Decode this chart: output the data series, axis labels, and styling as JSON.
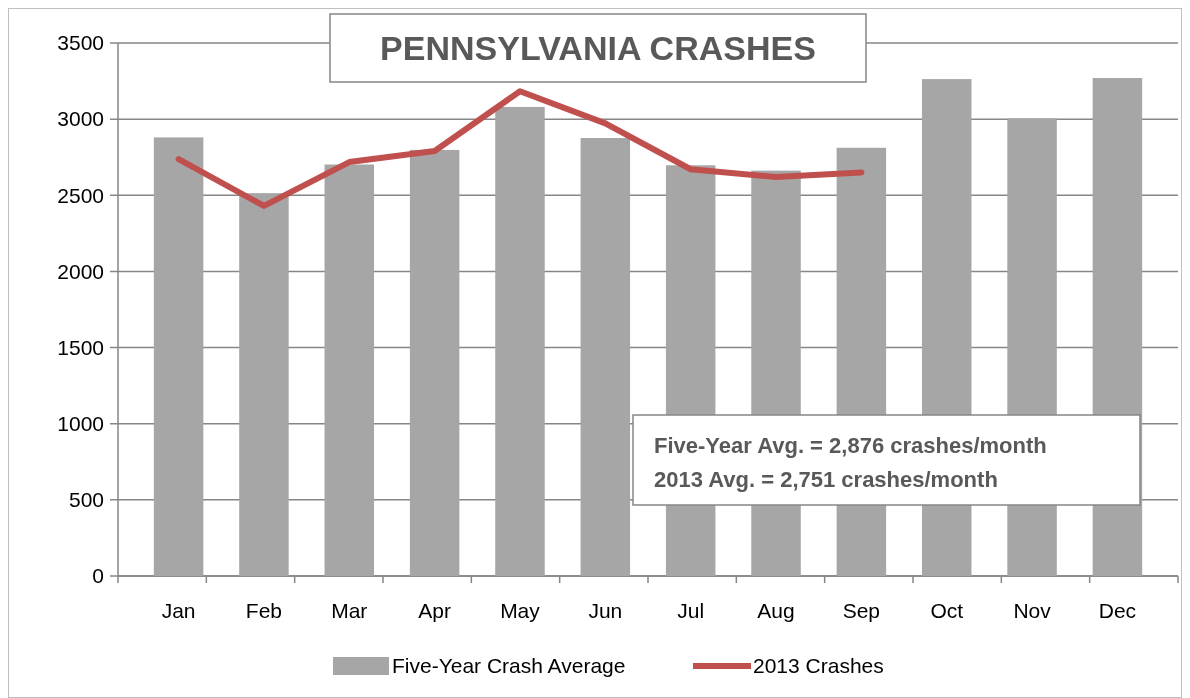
{
  "chart_data": {
    "type": "bar",
    "title": "PENNSYLVANIA CRASHES",
    "categories": [
      "Jan",
      "Feb",
      "Mar",
      "Apr",
      "May",
      "Jun",
      "Jul",
      "Aug",
      "Sep",
      "Oct",
      "Nov",
      "Dec"
    ],
    "series": [
      {
        "name": "Five-Year Crash Average",
        "color": "#a6a6a6",
        "values": [
          2880,
          2514,
          2702,
          2798,
          3080,
          2876,
          2697,
          2662,
          2812,
          3263,
          3005,
          3270
        ]
      },
      {
        "name": "2013 Crashes",
        "type": "line",
        "color": "#c0504d",
        "values": [
          2737,
          2430,
          2718,
          2791,
          3183,
          2972,
          2671,
          2620,
          2650,
          null,
          null,
          null
        ]
      }
    ],
    "ylim": [
      0,
      3500
    ],
    "yticks": [
      0,
      500,
      1000,
      1500,
      2000,
      2500,
      3000,
      3500
    ],
    "grid": "y",
    "legend": "bottom",
    "annotations": [
      "Five-Year Avg. = 2,876 crashes/month",
      "2013 Avg. = 2,751 crashes/month"
    ]
  }
}
